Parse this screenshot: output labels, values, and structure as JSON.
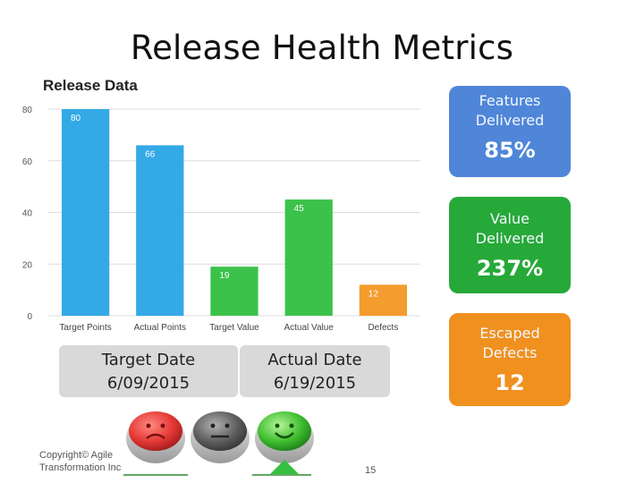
{
  "slide": {
    "title": "Release Health Metrics",
    "page_number": "15",
    "copyright_line1": "Copyright© Agile",
    "copyright_line2": "Transformation Inc"
  },
  "chart_data": {
    "type": "bar",
    "title": "Release Data",
    "categories": [
      "Target Points",
      "Actual Points",
      "Target Value",
      "Actual Value",
      "Defects"
    ],
    "values": [
      80,
      66,
      19,
      45,
      12
    ],
    "value_labels": [
      "80",
      "66",
      "19",
      "45",
      "12"
    ],
    "colors": [
      "#33a9e6",
      "#33a9e6",
      "#3cc24a",
      "#3cc24a",
      "#f49c2e"
    ],
    "ylim": [
      0,
      80
    ],
    "yticks": [
      0,
      20,
      40,
      60,
      80
    ],
    "ytick_labels": [
      "0",
      "20",
      "40",
      "60",
      "80"
    ],
    "grid": true,
    "xlabel": "",
    "ylabel": ""
  },
  "kpis": {
    "features": {
      "label1": "Features",
      "label2": "Delivered",
      "value": "85%",
      "color": "#4f86d8"
    },
    "value": {
      "label1": "Value",
      "label2": "Delivered",
      "value": "237%",
      "color": "#26a939"
    },
    "defects": {
      "label1": "Escaped",
      "label2": "Defects",
      "value": "12",
      "color": "#f0901f"
    }
  },
  "dates": {
    "target": {
      "label": "Target Date",
      "value": "6/09/2015"
    },
    "actual": {
      "label": "Actual Date",
      "value": "6/19/2015"
    }
  },
  "status_lights": [
    "red",
    "gray",
    "green"
  ]
}
